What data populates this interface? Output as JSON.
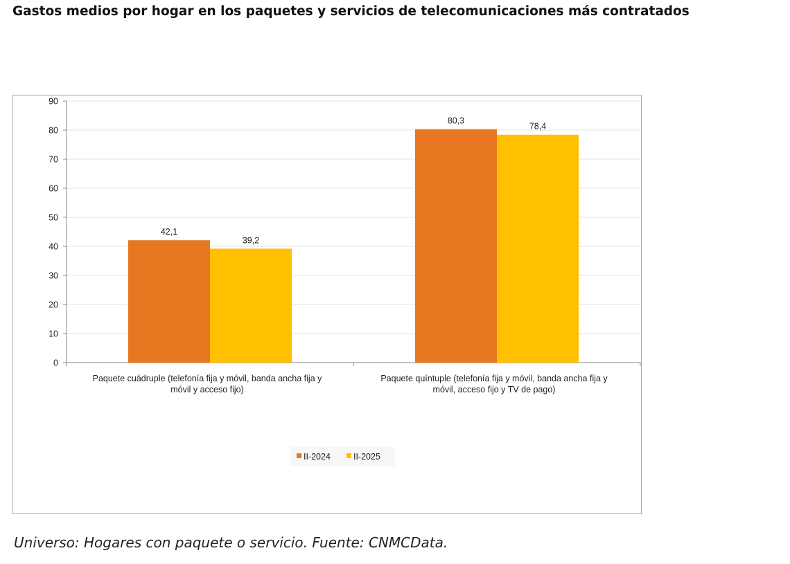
{
  "title": "Gastos medios por hogar en los paquetes y servicios de telecomunicaciones más contratados",
  "footer": "Universo: Hogares con paquete o servicio. Fuente: CNMCData.",
  "chart_data": {
    "type": "bar",
    "title": "",
    "xlabel": "",
    "ylabel": "",
    "ylim": [
      0,
      90
    ],
    "yticks": [
      0,
      10,
      20,
      30,
      40,
      50,
      60,
      70,
      80,
      90
    ],
    "grid": true,
    "legend_position": "bottom",
    "categories": [
      [
        "Paquete cuádruple (telefonía fija y móvil, banda ancha fija y",
        "móvil y acceso fijo)"
      ],
      [
        "Paquete quíntuple (telefonía fija y móvil, banda ancha fija y",
        "móvil, acceso fijo y TV de pago)"
      ]
    ],
    "series": [
      {
        "name": "II-2024",
        "color": "#E87722",
        "values": [
          42.1,
          80.3
        ],
        "labels": [
          "42,1",
          "80,3"
        ]
      },
      {
        "name": "II-2025",
        "color": "#FFC000",
        "values": [
          39.2,
          78.4
        ],
        "labels": [
          "39,2",
          "78,4"
        ]
      }
    ]
  }
}
